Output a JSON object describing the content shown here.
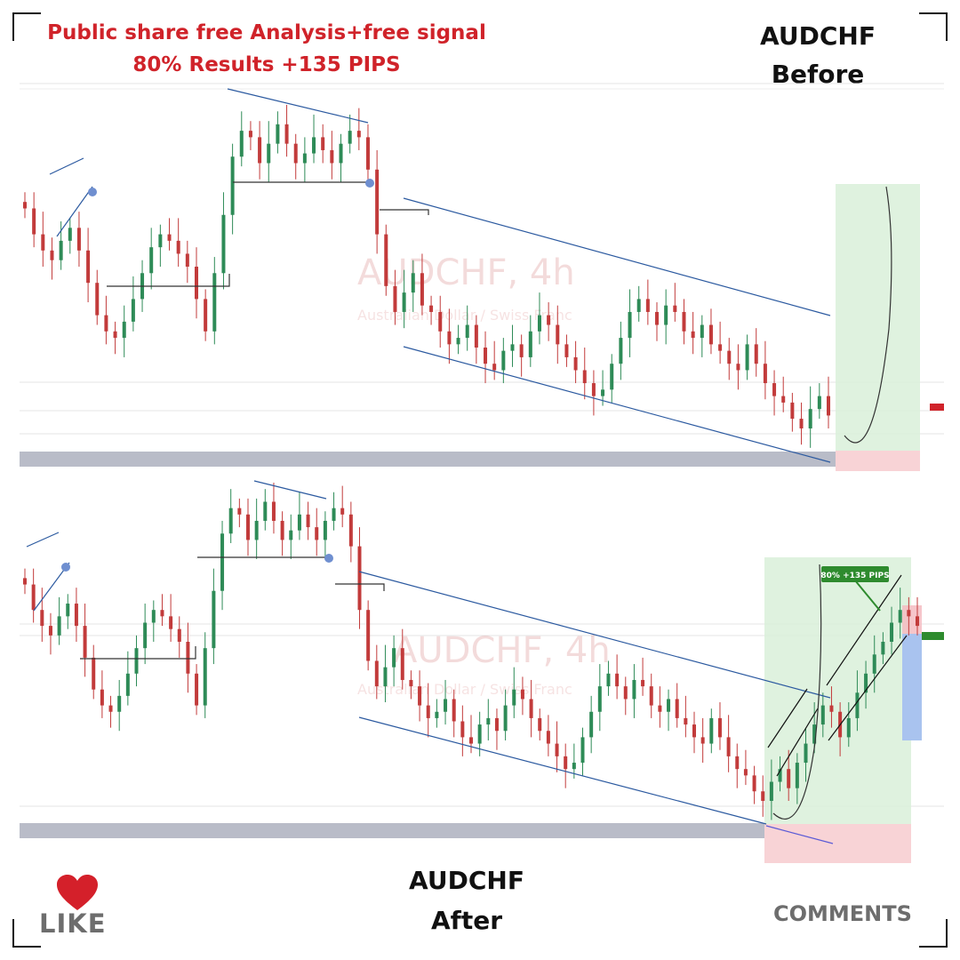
{
  "headline": {
    "line1": "Public share free Analysis+free signal",
    "line2": "80% Results +135 PIPS"
  },
  "before_label": {
    "pair": "AUDCHF",
    "state": "Before"
  },
  "after_label": {
    "pair": "AUDCHF",
    "state": "After"
  },
  "footer": {
    "like": "LIKE",
    "comments": "COMMENTS"
  },
  "colors": {
    "headline": "#d0232a",
    "bull_candle": "#2e8b57",
    "bear_candle": "#c23b3b",
    "trendline": "#2c5aa0",
    "target_zone": "#d9f0d9",
    "stop_zone": "#f8d3d6",
    "support_band": "#b9bcc8",
    "like_heart": "#d4202a"
  },
  "chart_data": [
    {
      "type": "candlestick",
      "panel": "before",
      "watermark": "AUDCHF, 4h",
      "watermark_sub": "Australian Dollar / Swiss Franc",
      "price_tag": "AUDCHF",
      "close_path": [
        68,
        60,
        55,
        52,
        58,
        62,
        55,
        45,
        35,
        30,
        28,
        33,
        40,
        48,
        56,
        60,
        58,
        54,
        50,
        40,
        30,
        48,
        66,
        84,
        92,
        90,
        82,
        88,
        94,
        88,
        82,
        85,
        90,
        86,
        82,
        88,
        92,
        90,
        80,
        60,
        44,
        36,
        42,
        48,
        38,
        36,
        30,
        26,
        28,
        32,
        25,
        20,
        18,
        24,
        26,
        22,
        30,
        35,
        32,
        26,
        22,
        18,
        14,
        10,
        12,
        20,
        28,
        36,
        40,
        36,
        32,
        38,
        36,
        30,
        28,
        32,
        26,
        24,
        20,
        18,
        26,
        20,
        14,
        10,
        8,
        3,
        0,
        6,
        10,
        4
      ]
    },
    {
      "type": "candlestick",
      "panel": "after",
      "watermark": "AUDCHF, 4h",
      "watermark_sub": "Australian Dollar / Swiss Franc",
      "price_tag": "AUDCHF",
      "trade_label": "80% +135 PIPS",
      "close_path": [
        68,
        60,
        55,
        52,
        58,
        62,
        55,
        45,
        35,
        30,
        28,
        33,
        40,
        48,
        56,
        60,
        58,
        54,
        50,
        40,
        30,
        48,
        66,
        84,
        92,
        90,
        82,
        88,
        94,
        88,
        82,
        85,
        90,
        86,
        82,
        88,
        92,
        90,
        80,
        60,
        44,
        36,
        42,
        48,
        38,
        36,
        30,
        26,
        28,
        32,
        25,
        20,
        18,
        24,
        26,
        22,
        30,
        35,
        32,
        26,
        22,
        18,
        14,
        10,
        12,
        20,
        28,
        36,
        40,
        36,
        32,
        38,
        36,
        30,
        28,
        32,
        26,
        24,
        20,
        18,
        26,
        20,
        14,
        10,
        8,
        3,
        0,
        6,
        10,
        4,
        12,
        18,
        24,
        30,
        28,
        20,
        26,
        34,
        40,
        46,
        50,
        56,
        60,
        58,
        55
      ]
    }
  ]
}
